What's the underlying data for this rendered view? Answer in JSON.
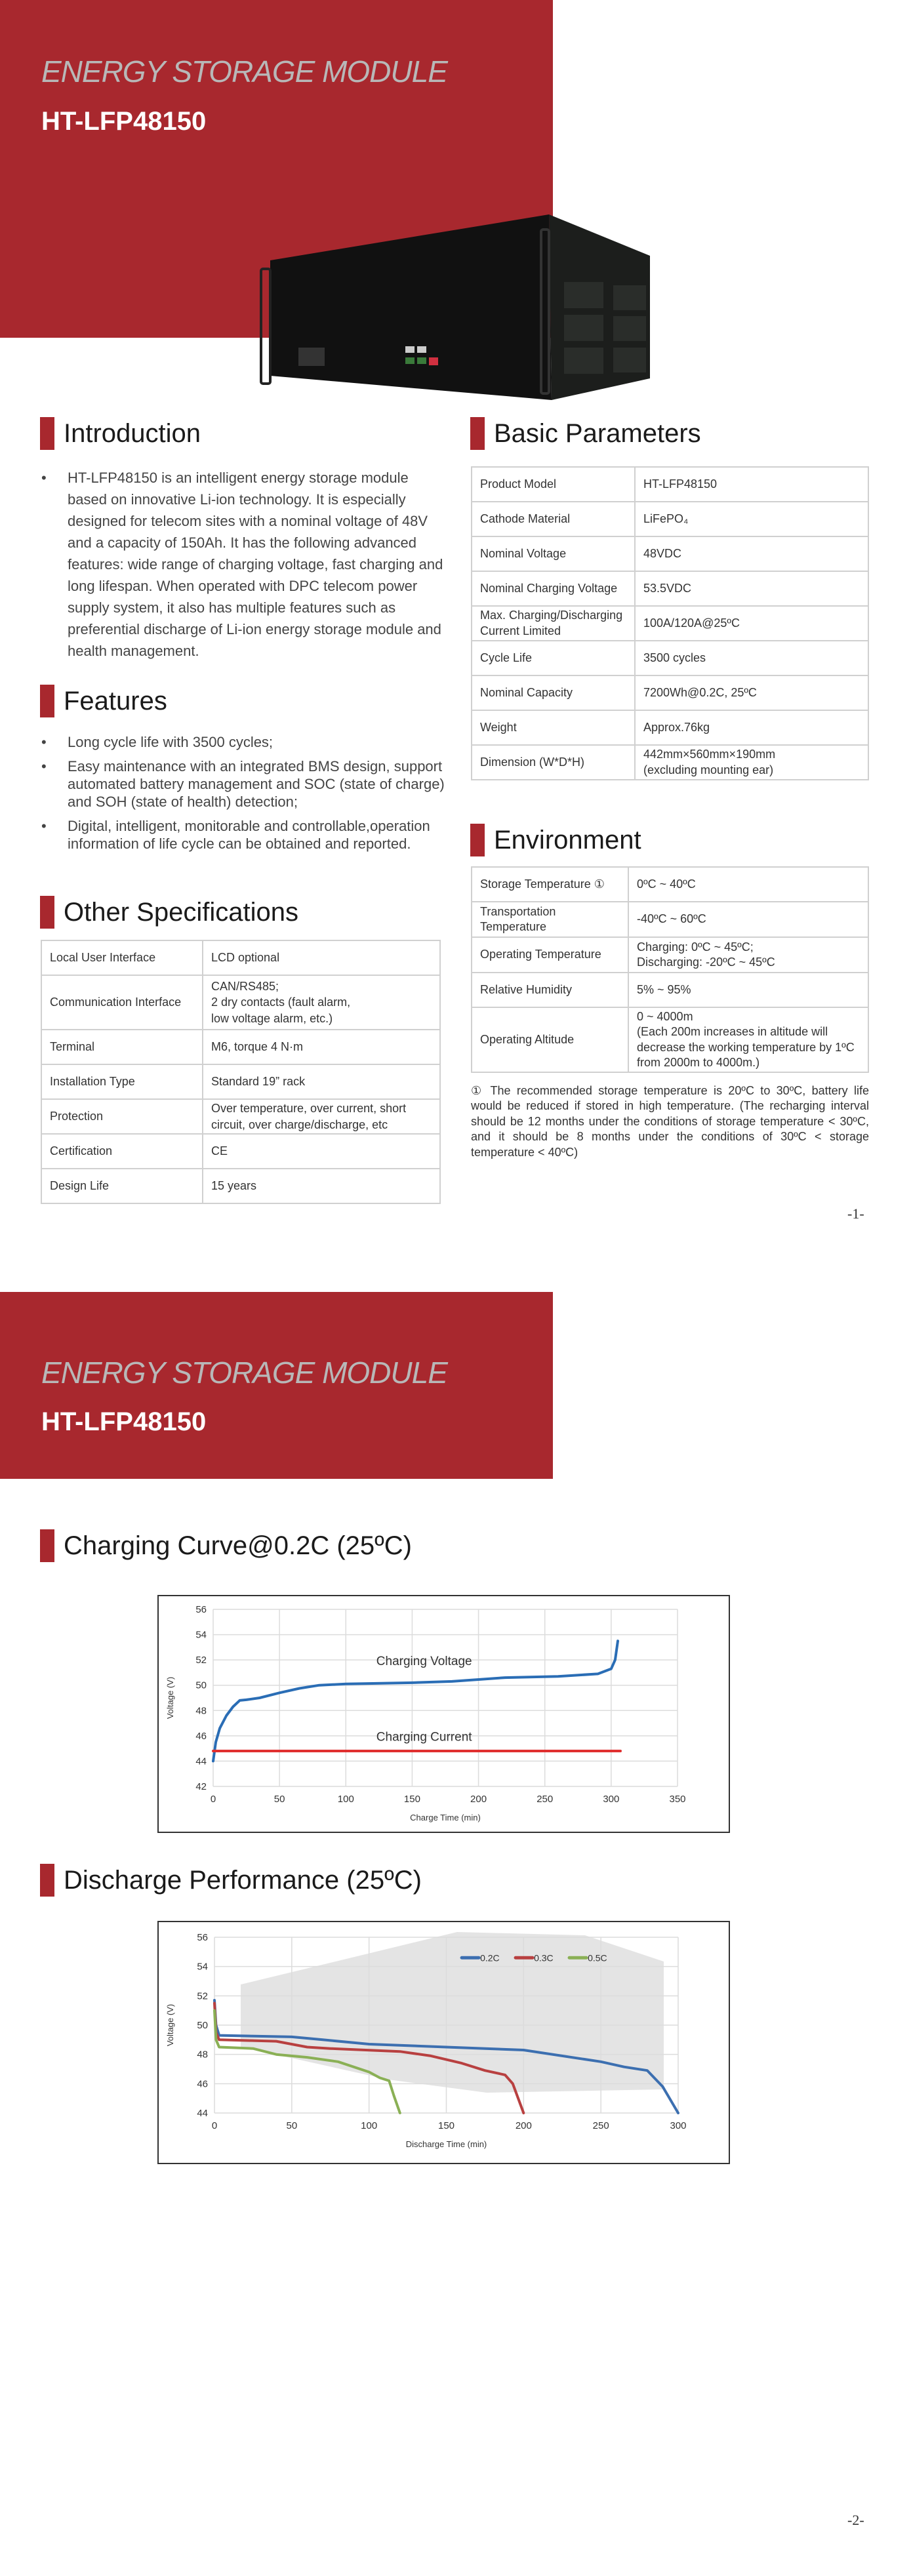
{
  "header": {
    "subtitle": "ENERGY STORAGE MODULE",
    "model": "HT-LFP48150",
    "brand_color": "#a8282e"
  },
  "introduction": {
    "title": "Introduction",
    "text": "HT-LFP48150 is an intelligent energy storage module based on innovative Li-ion technology. It is especially designed for telecom sites with a nominal voltage of 48V and a capacity of 150Ah. It has the following advanced features: wide range of charging voltage, fast charging and long lifespan. When operated with DPC telecom power supply system, it also has multiple features such as preferential discharge of Li-ion energy storage module and health management."
  },
  "features": {
    "title": "Features",
    "items": [
      "Long cycle life with 3500 cycles;",
      "Easy maintenance with an integrated BMS design, support automated battery management and SOC (state of charge) and SOH (state of health) detection;",
      "Digital, intelligent, monitorable and controllable,operation information of life cycle can be obtained and reported."
    ]
  },
  "other_specs": {
    "title": "Other Specifications",
    "rows": [
      [
        "Local User Interface",
        "LCD optional"
      ],
      [
        "Communication Interface",
        "CAN/RS485;\n2 dry contacts (fault alarm,\nlow voltage alarm, etc.)"
      ],
      [
        "Terminal",
        "M6, torque 4 N·m"
      ],
      [
        "Installation Type",
        "Standard 19” rack"
      ],
      [
        "Protection",
        "Over temperature, over current, short circuit, over charge/discharge, etc"
      ],
      [
        "Certification",
        "CE"
      ],
      [
        "Design Life",
        "15 years"
      ]
    ]
  },
  "basic_parameters": {
    "title": "Basic Parameters",
    "rows": [
      [
        "Product Model",
        "HT-LFP48150"
      ],
      [
        "Cathode Material",
        "LiFePO₄"
      ],
      [
        "Nominal Voltage",
        "48VDC"
      ],
      [
        "Nominal Charging Voltage",
        "53.5VDC"
      ],
      [
        "Max. Charging/Discharging Current Limited",
        "100A/120A@25ºC"
      ],
      [
        "Cycle Life",
        "3500 cycles"
      ],
      [
        "Nominal Capacity",
        "7200Wh@0.2C, 25ºC"
      ],
      [
        "Weight",
        "Approx.76kg"
      ],
      [
        "Dimension (W*D*H)",
        "442mm×560mm×190mm\n(excluding mounting ear)"
      ]
    ]
  },
  "environment": {
    "title": "Environment",
    "rows": [
      [
        "Storage Temperature ①",
        "0ºC ~ 40ºC"
      ],
      [
        "Transportation Temperature",
        "-40ºC ~ 60ºC"
      ],
      [
        "Operating Temperature",
        "Charging: 0ºC ~ 45ºC;\nDischarging: -20ºC ~ 45ºC"
      ],
      [
        "Relative Humidity",
        "5% ~ 95%"
      ],
      [
        "Operating Altitude",
        "0 ~ 4000m\n(Each 200m increases in altitude will decrease the working temperature by 1ºC from 2000m to 4000m.)"
      ]
    ],
    "footnote": "① The recommended storage temperature is 20ºC to 30ºC, battery life would be reduced if stored in high temperature. (The recharging interval should be 12 months under the conditions of storage temperature < 30ºC, and it should be 8 months under the conditions of 30ºC < storage temperature < 40ºC)"
  },
  "pages": {
    "page1": "-1-",
    "page2": "-2-"
  },
  "charging_section": {
    "title": "Charging Curve@0.2C (25ºC)"
  },
  "discharge_section": {
    "title": "Discharge Performance (25ºC)"
  },
  "chart_data": [
    {
      "type": "line",
      "xlabel": "Charge Time (min)",
      "ylabel": "Voltage (V)",
      "xlim": [
        0,
        350
      ],
      "ylim": [
        42,
        56
      ],
      "xticks": [
        0,
        50,
        100,
        150,
        200,
        250,
        300,
        350
      ],
      "yticks": [
        42,
        44,
        46,
        48,
        50,
        52,
        54,
        56
      ],
      "grid": true,
      "annotations": [
        "Charging Voltage",
        "Charging Current"
      ],
      "series": [
        {
          "name": "Charging Voltage",
          "color": "#2a6db5",
          "x": [
            0,
            2,
            5,
            10,
            15,
            20,
            25,
            35,
            50,
            65,
            80,
            100,
            150,
            180,
            200,
            220,
            260,
            290,
            300,
            303,
            305
          ],
          "y": [
            44,
            45.5,
            46.6,
            47.6,
            48.3,
            48.8,
            48.85,
            49,
            49.4,
            49.75,
            50,
            50.1,
            50.2,
            50.3,
            50.45,
            50.6,
            50.7,
            50.9,
            51.3,
            52,
            53.5
          ]
        },
        {
          "name": "Charging Current",
          "color": "#e03030",
          "x": [
            0,
            307
          ],
          "y": [
            44.8,
            44.8
          ]
        }
      ]
    },
    {
      "type": "line",
      "xlabel": "Discharge Time (min)",
      "ylabel": "Voltage (V)",
      "xlim": [
        0,
        300
      ],
      "ylim": [
        44,
        56
      ],
      "xticks": [
        0,
        50,
        100,
        150,
        200,
        250,
        300
      ],
      "yticks": [
        44,
        46,
        48,
        50,
        52,
        54,
        56
      ],
      "grid": true,
      "legend": "top-right",
      "series": [
        {
          "name": "0.2C",
          "color": "#3c6fb0",
          "x": [
            0,
            1,
            3,
            50,
            70,
            100,
            150,
            200,
            250,
            265,
            280,
            290,
            300
          ],
          "y": [
            51.7,
            50,
            49.3,
            49.2,
            49,
            48.7,
            48.5,
            48.3,
            47.5,
            47.15,
            46.9,
            45.8,
            44
          ]
        },
        {
          "name": "0.3C",
          "color": "#b84040",
          "x": [
            0,
            1,
            3,
            40,
            60,
            75,
            120,
            140,
            160,
            175,
            188,
            193,
            200
          ],
          "y": [
            51.5,
            49.5,
            49,
            48.9,
            48.5,
            48.4,
            48.2,
            47.9,
            47.4,
            46.9,
            46.6,
            46,
            44
          ]
        },
        {
          "name": "0.5C",
          "color": "#8ab055",
          "x": [
            0,
            1,
            3,
            25,
            40,
            60,
            80,
            100,
            107,
            113,
            116,
            120
          ],
          "y": [
            51,
            49,
            48.5,
            48.4,
            48,
            47.8,
            47.5,
            46.8,
            46.4,
            46.2,
            45.2,
            44
          ]
        }
      ]
    }
  ]
}
